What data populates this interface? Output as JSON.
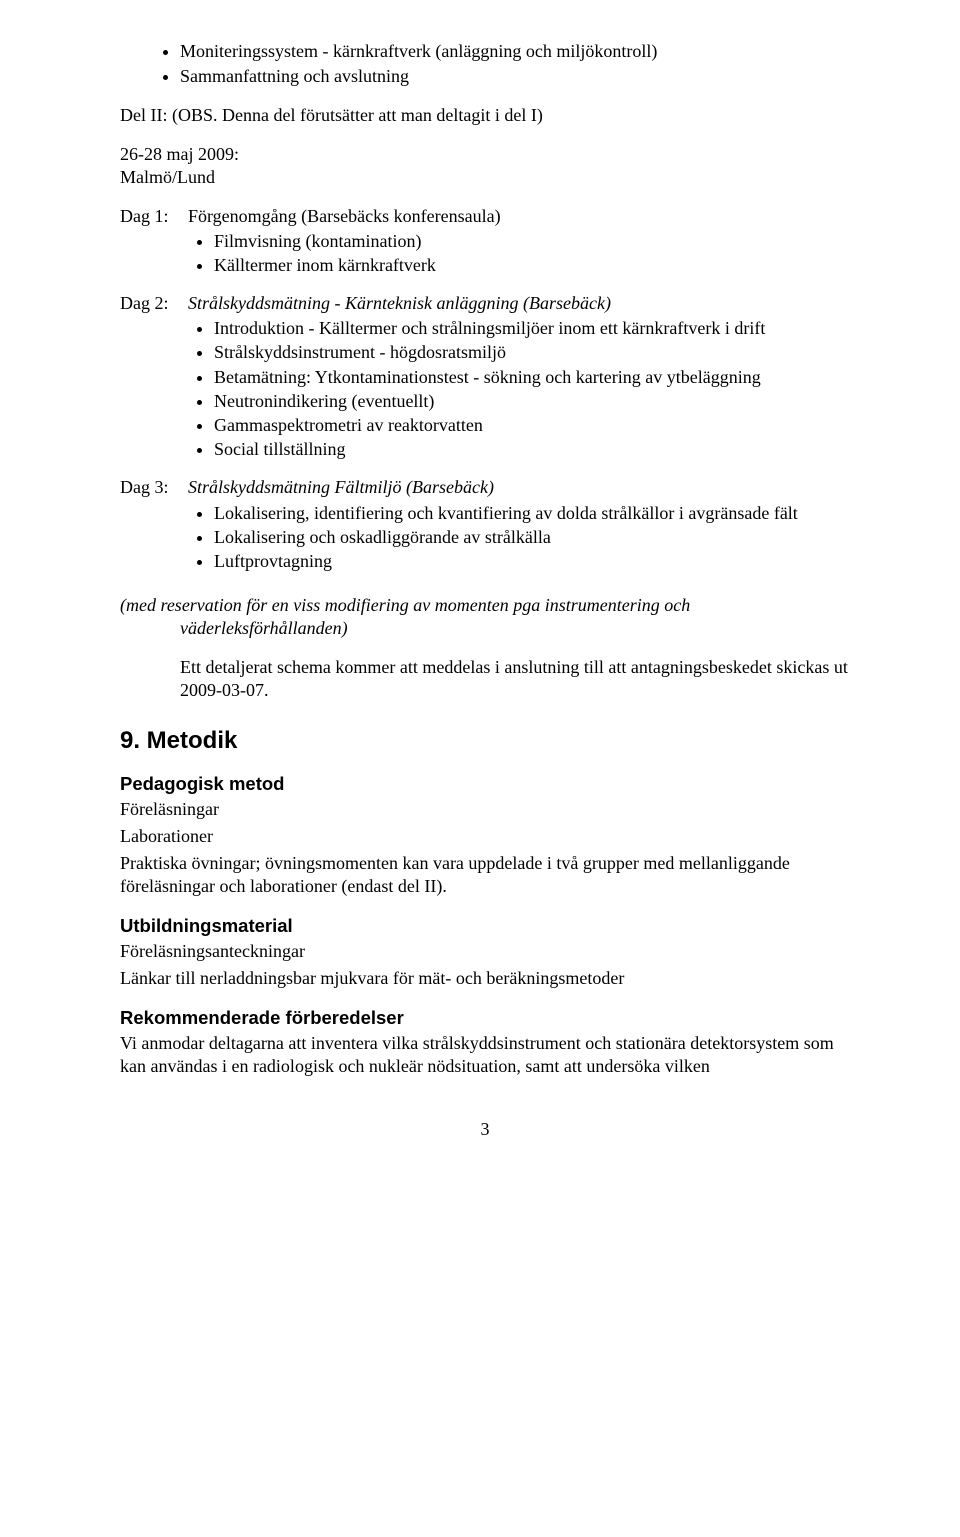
{
  "topBullets": [
    "Moniteringssystem - kärnkraftverk (anläggning och miljökontroll)",
    "Sammanfattning och avslutning"
  ],
  "del2Note": "Del II: (OBS. Denna del förutsätter att man deltagit i del I)",
  "dateLine": "26-28 maj 2009:",
  "location": "Malmö/Lund",
  "dag1": {
    "label": "Dag 1:",
    "title": "Förgenomgång (Barsebäcks konferensaula)",
    "items": [
      "Filmvisning (kontamination)",
      "Källtermer inom kärnkraftverk"
    ]
  },
  "dag2": {
    "label": "Dag 2:",
    "title": "Strålskyddsmätning - Kärnteknisk anläggning (Barsebäck)",
    "items": [
      "Introduktion - Källtermer och strålningsmiljöer inom ett kärnkraftverk i drift",
      "Strålskyddsinstrument - högdosratsmiljö"
    ],
    "items2": [
      "Betamätning: Ytkontaminationstest - sökning och kartering av ytbeläggning",
      "Neutronindikering (eventuellt)",
      "Gammaspektrometri av reaktorvatten",
      "Social tillställning"
    ]
  },
  "dag3": {
    "label": "Dag 3:",
    "title": "Strålskyddsmätning Fältmiljö (Barsebäck)",
    "items": [
      "Lokalisering, identifiering och kvantifiering av dolda strålkällor i avgränsade fält",
      "Lokalisering och oskadliggörande av strålkälla",
      "Luftprovtagning"
    ]
  },
  "reservation": {
    "line1": "(med reservation för en viss modifiering av momenten pga instrumentering och",
    "line2": "väderleksförhållanden)"
  },
  "schedNote": "Ett detaljerat schema kommer att meddelas i anslutning till att antagningsbeskedet skickas ut 2009-03-07.",
  "section9": {
    "heading": "9. Metodik",
    "pedagogisk": {
      "heading": "Pedagogisk metod",
      "lines": [
        "Föreläsningar",
        "Laborationer",
        "Praktiska övningar; övningsmomenten kan vara uppdelade i två grupper med mellanliggande föreläsningar och laborationer (endast del II)."
      ]
    },
    "utbildnings": {
      "heading": "Utbildningsmaterial",
      "lines": [
        "Föreläsningsanteckningar",
        "Länkar till nerladdningsbar mjukvara för mät- och beräkningsmetoder"
      ]
    },
    "rekommend": {
      "heading": "Rekommenderade förberedelser",
      "lines": [
        "Vi anmodar deltagarna att inventera vilka strålskyddsinstrument och stationära detektorsystem som kan användas i en radiologisk och nukleär nödsituation, samt att undersöka vilken"
      ]
    }
  },
  "pageNumber": "3"
}
